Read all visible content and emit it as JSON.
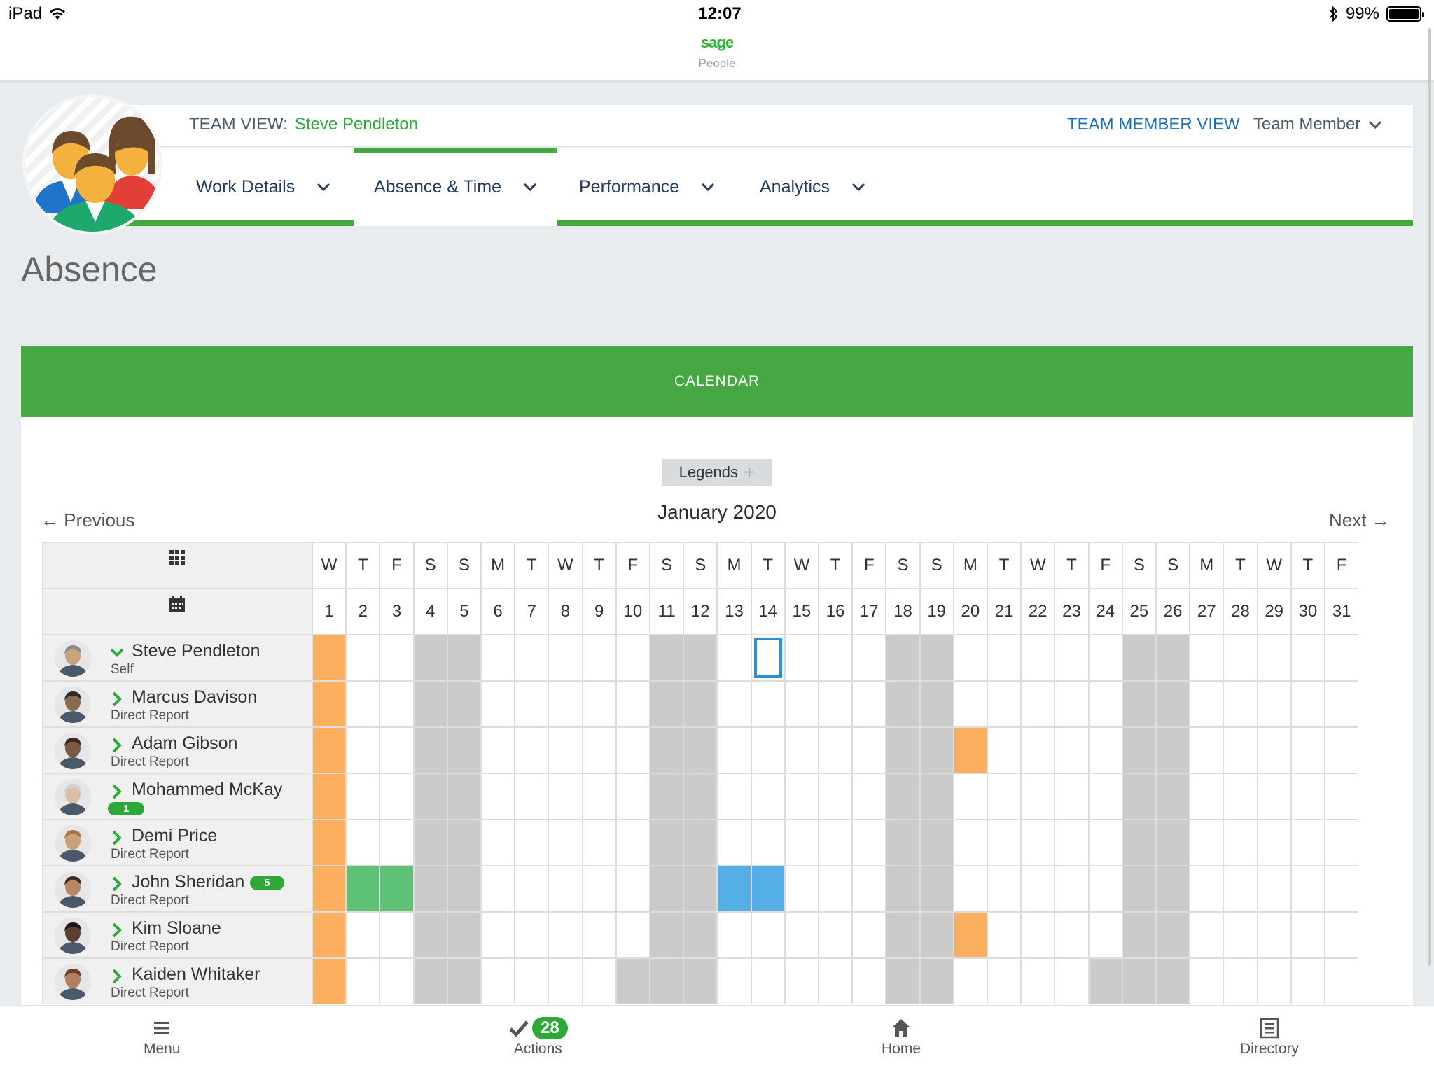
{
  "status_bar": {
    "device": "iPad",
    "time": "12:07",
    "battery": "99%",
    "battery_level": 0.99
  },
  "brand": {
    "logo": "sage",
    "sub": "People"
  },
  "team": {
    "view_label": "TEAM VIEW:",
    "view_name": "Steve Pendleton",
    "member_view_link": "TEAM MEMBER VIEW",
    "member_select": "Team Member"
  },
  "tabs": [
    {
      "label": "Work Details"
    },
    {
      "label": "Absence & Time"
    },
    {
      "label": "Performance"
    },
    {
      "label": "Analytics"
    }
  ],
  "page_title": "Absence",
  "calendar": {
    "header": "CALENDAR",
    "legends": "Legends",
    "month": "January 2020",
    "previous": "← Previous",
    "next": "Next →",
    "weekdays": [
      "W",
      "T",
      "F",
      "S",
      "S",
      "M",
      "T",
      "W",
      "T",
      "F",
      "S",
      "S",
      "M",
      "T",
      "W",
      "T",
      "F",
      "S",
      "S",
      "M",
      "T",
      "W",
      "T",
      "F",
      "S",
      "S",
      "M",
      "T",
      "W",
      "T",
      "F"
    ],
    "days": [
      "1",
      "2",
      "3",
      "4",
      "5",
      "6",
      "7",
      "8",
      "9",
      "10",
      "11",
      "12",
      "13",
      "14",
      "15",
      "16",
      "17",
      "18",
      "19",
      "20",
      "21",
      "22",
      "23",
      "24",
      "25",
      "26",
      "27",
      "28",
      "29",
      "30",
      "31"
    ],
    "today": 14,
    "colors": {
      "holiday": "#fbaf5f",
      "weekend": "#cbcbcb",
      "leave_green": "#5ec277",
      "leave_blue": "#56aee6",
      "today_border": "#2b8fe0"
    },
    "employees": [
      {
        "name": "Steve Pendleton",
        "role": "Self",
        "expanded": true,
        "badge": "",
        "extra_grey": [],
        "absences": [
          {
            "day": 1,
            "color": "orange"
          }
        ]
      },
      {
        "name": "Marcus Davison",
        "role": "Direct Report",
        "expanded": false,
        "badge": "",
        "extra_grey": [],
        "absences": [
          {
            "day": 1,
            "color": "orange"
          }
        ]
      },
      {
        "name": "Adam Gibson",
        "role": "Direct Report",
        "expanded": false,
        "badge": "",
        "extra_grey": [],
        "absences": [
          {
            "day": 1,
            "color": "orange"
          },
          {
            "day": 20,
            "color": "orange"
          }
        ]
      },
      {
        "name": "Mohammed McKay",
        "role": "",
        "expanded": false,
        "badge": "1",
        "badge_position": "under",
        "extra_grey": [],
        "absences": [
          {
            "day": 1,
            "color": "orange"
          }
        ]
      },
      {
        "name": "Demi Price",
        "role": "Direct Report",
        "expanded": false,
        "badge": "",
        "extra_grey": [],
        "absences": [
          {
            "day": 1,
            "color": "orange"
          }
        ]
      },
      {
        "name": "John Sheridan",
        "role": "Direct Report",
        "expanded": false,
        "badge": "5",
        "badge_position": "inline",
        "extra_grey": [],
        "absences": [
          {
            "day": 1,
            "color": "orange"
          },
          {
            "day": 2,
            "color": "green"
          },
          {
            "day": 3,
            "color": "green"
          },
          {
            "day": 13,
            "color": "blue"
          },
          {
            "day": 14,
            "color": "blue"
          }
        ]
      },
      {
        "name": "Kim Sloane",
        "role": "Direct Report",
        "expanded": false,
        "badge": "",
        "extra_grey": [],
        "absences": [
          {
            "day": 1,
            "color": "orange"
          },
          {
            "day": 20,
            "color": "orange"
          }
        ]
      },
      {
        "name": "Kaiden Whitaker",
        "role": "Direct Report",
        "expanded": false,
        "badge": "",
        "extra_grey": [
          10,
          24
        ],
        "absences": [
          {
            "day": 1,
            "color": "orange"
          }
        ]
      }
    ]
  },
  "bottom_nav": [
    {
      "label": "Menu",
      "icon": "menu-icon"
    },
    {
      "label": "Actions",
      "icon": "check-icon",
      "badge": "28"
    },
    {
      "label": "Home",
      "icon": "home-icon"
    },
    {
      "label": "Directory",
      "icon": "directory-icon"
    }
  ]
}
